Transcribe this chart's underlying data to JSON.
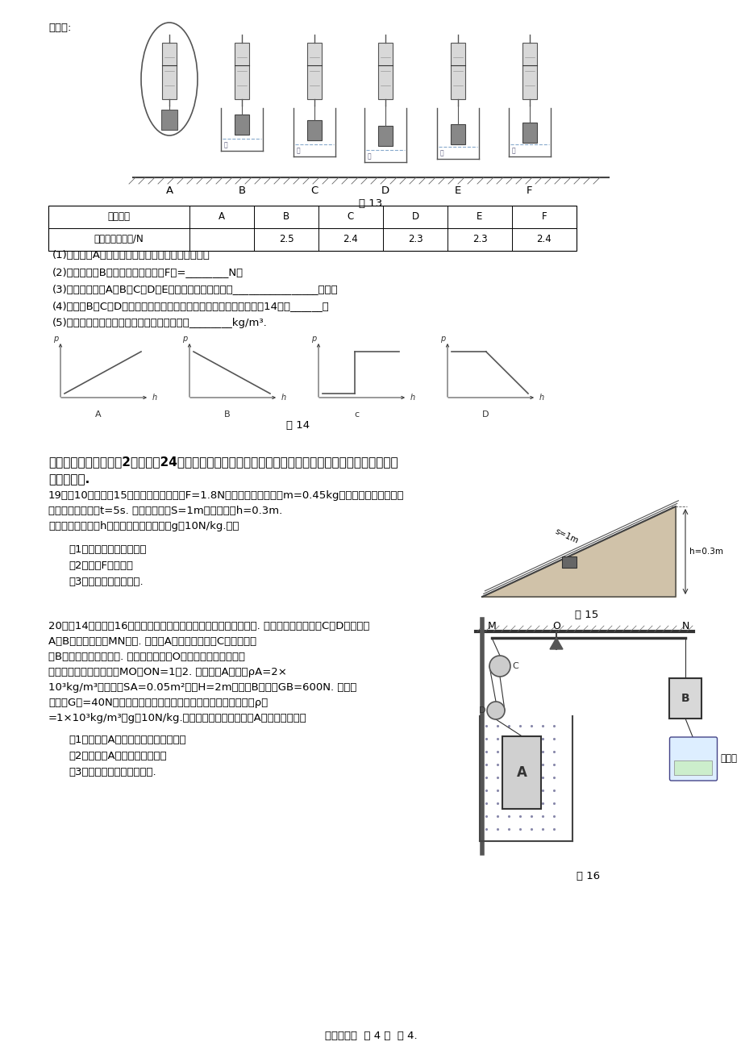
{
  "bg_color": "#ffffff",
  "page_width": 9.2,
  "page_height": 13.02,
  "lm": 60,
  "rm": 870,
  "line0": "下表中:",
  "table_header": [
    "实验步骤",
    "A",
    "B",
    "C",
    "D",
    "E",
    "F"
  ],
  "table_row": [
    "弹簧测力计示数/N",
    "",
    "2.5",
    "2.4",
    "2.3",
    "2.3",
    "2.4"
  ],
  "fig13_label": "图 13",
  "fig14_label": "图 14",
  "fig15_label": "图 15",
  "fig16_label": "图 16",
  "q1_lines": [
    "(1)请将步骤A中所示弹簧测力计的示数填在表格中；",
    "(2)在实验步骤B中，圆柱体所受浮力F浮=________N；",
    "(3)分析实验步骤A、B、C、D、E，可以说明浮力大小跟________________有关；",
    "(4)在步骤B、C、D中，圆柱体下表面受到水的压强与深度的关系是图14中的______；",
    "(5)小张用表格中的数据算出了该液体的密度是________kg/m³."
  ],
  "sec5_line1": "五、计算与解答题（共2小题，共24分），要求写出必要的文字说明和重要的演算步骤，只写出最后答案",
  "sec5_line2": "的不能得分.",
  "q19_lines": [
    "19．（10分）如图15所示，用沿斜面向上F=1.8N的拉力，将一个质量m=0.45kg的物体，从底端匀速拉",
    "到顶端，所用时间t=5s. 已知斜面长度S=1m，斜面高度h=0.3m.",
    "（把重物直接提升h所做的功为有用功），g取10N/kg.求："
  ],
  "q19_subs": [
    "（1）该物体所受的重力；",
    "（2）拉力F的功率；",
    "（3）此斜面的机械效率."
  ],
  "q20_lines_left": [
    "20．（14分）如图16所示是利用电子秤显示水库水位装置的示意图. 该装置主要由动滑轮C、D，圆柱体",
    "A、B以及轻质杠杆MN组成. 圆柱体A通过细绳与滑轮C相连，圆柱",
    "体B通过细绳与杠杆相连. 杠杆可以绕支点O在竖直平面内转动杠杆",
    "始终在水平位置平衡，且MO：ON=1：2. 已知物块A的密度ρA=2×",
    "10³kg/m³，底面积SA=0.05m²，高H=2m，物块B的重力GB=600N. 每个动",
    "滑轮重G动=40N，滑轮与转轴的摩擦杠杆与轴的摩擦均忽略不计，ρ水",
    "=1×10³kg/m³，g取10N/kg.当水位上升刚好到圆柱体A的顶部时，求："
  ],
  "q20_subs": [
    "（1）圆柱体A底部受到水的压强大小；",
    "（2）圆柱体A所受的拉力大小；",
    "（3）此时电子秤的示数大小."
  ],
  "footer": "八年级物理  第 4 页  共 4."
}
